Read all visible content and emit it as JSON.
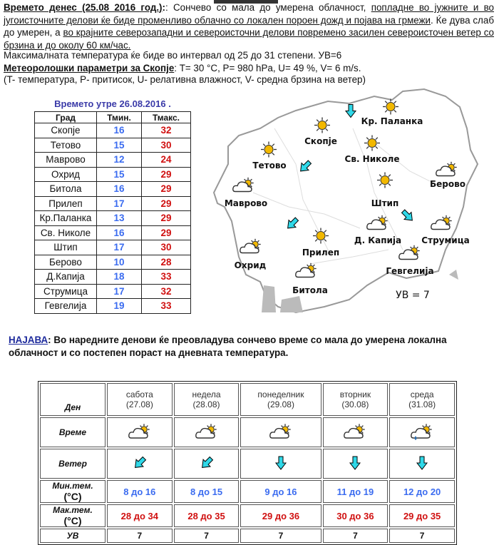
{
  "intro": {
    "title": "Времето денес (25.08 2016 год.)",
    "p1": ": Сончево со мала до умерена облачност, ",
    "p2": "попладне во јужните и во југоисточните делови ќе биде променливо облачно со локален пороен дожд и појава на грмежи",
    "p3": ". Ќе дува слаб до умерен, а ",
    "p4": "во крајните северозападни и североисточни делови повремено засилен североисточен ветер со брзина и до околу 60 км/час.",
    "max_temp": "Максималната температура ќе биде во интервал од 25 до 31 степени. УВ=6",
    "params_label": "Метеоролошки параметри за Скопје",
    "params_value": ": T= 30 °C, P= 980 hPa, U= 49 %, V= 6 m/s.",
    "legend": "(T- температура, P- притисок, U- релативна влажност, V- средна брзина на ветер)"
  },
  "tomorrow": {
    "title": "Времето утре 26.08.2016 .",
    "headers": [
      "Град",
      "Тмин.",
      "Тмакс."
    ],
    "rows": [
      [
        "Скопје",
        "16",
        "32"
      ],
      [
        "Тетово",
        "15",
        "30"
      ],
      [
        "Маврово",
        "12",
        "24"
      ],
      [
        "Охрид",
        "15",
        "29"
      ],
      [
        "Битола",
        "16",
        "29"
      ],
      [
        "Прилеп",
        "17",
        "29"
      ],
      [
        "Кр.Паланка",
        "13",
        "29"
      ],
      [
        "Св. Николе",
        "16",
        "29"
      ],
      [
        "Штип",
        "17",
        "30"
      ],
      [
        "Берово",
        "10",
        "28"
      ],
      [
        "Д.Капија",
        "18",
        "33"
      ],
      [
        "Струмица",
        "17",
        "32"
      ],
      [
        "Гевгелија",
        "19",
        "33"
      ]
    ]
  },
  "map": {
    "cities": [
      {
        "name": "Кр. Паланка",
        "icon": "sun"
      },
      {
        "name": "Скопје",
        "icon": "sun"
      },
      {
        "name": "Тетово",
        "icon": "sun"
      },
      {
        "name": "Св. Николе",
        "icon": "sun"
      },
      {
        "name": "Маврово",
        "icon": "cloud-sun"
      },
      {
        "name": "Штип",
        "icon": "sun"
      },
      {
        "name": "Берово",
        "icon": "cloud-sun"
      },
      {
        "name": "Д. Капија",
        "icon": "cloud-sun"
      },
      {
        "name": "Струмица",
        "icon": "cloud-sun"
      },
      {
        "name": "Прилеп",
        "icon": "sun"
      },
      {
        "name": "Охрид",
        "icon": "cloud-sun"
      },
      {
        "name": "Гевгелија",
        "icon": "cloud-sun"
      },
      {
        "name": "Битола",
        "icon": "cloud-sun"
      }
    ],
    "wind_arrows": [
      "down",
      "down-left",
      "down-left",
      "down-right"
    ],
    "uv": "УВ = 7"
  },
  "najava": {
    "label": "НАЈАВА",
    "text": ": Во наредните денови ќе преовладува сончево време со мала до умерена локална облачност и со постепен пораст на дневната температура."
  },
  "forecast": {
    "row_labels": {
      "day": "Ден",
      "weather": "Време",
      "wind": "Ветер",
      "min": "Мин.тем.",
      "max": "Мак.тем.",
      "unit": "(°C)",
      "uv": "УВ"
    },
    "days": [
      {
        "name": "сабота",
        "date": "(27.08)",
        "weather": "cloud-sun",
        "wind": "down-left",
        "min": "8 до 16",
        "max": "28 до 34",
        "uv": "7"
      },
      {
        "name": "недела",
        "date": "(28.08)",
        "weather": "cloud-sun",
        "wind": "down-left",
        "min": "8 до 15",
        "max": "28 до 35",
        "uv": "7"
      },
      {
        "name": "понеделник",
        "date": "(29.08)",
        "weather": "cloud-sun",
        "wind": "down",
        "min": "9 до 16",
        "max": "29 до 36",
        "uv": "7"
      },
      {
        "name": "вторник",
        "date": "(30.08)",
        "weather": "cloud-sun",
        "wind": "down",
        "min": "11 до 19",
        "max": "30 до 36",
        "uv": "7"
      },
      {
        "name": "среда",
        "date": "(31.08)",
        "weather": "cloud-sun-rain",
        "wind": "down",
        "min": "12 до 20",
        "max": "29 до 35",
        "uv": "7"
      }
    ]
  },
  "colors": {
    "min": "#3b6cf0",
    "max": "#d01010",
    "title": "#3a3aa8",
    "arrow": "#2fd8e8",
    "sun": "#f2b800"
  }
}
